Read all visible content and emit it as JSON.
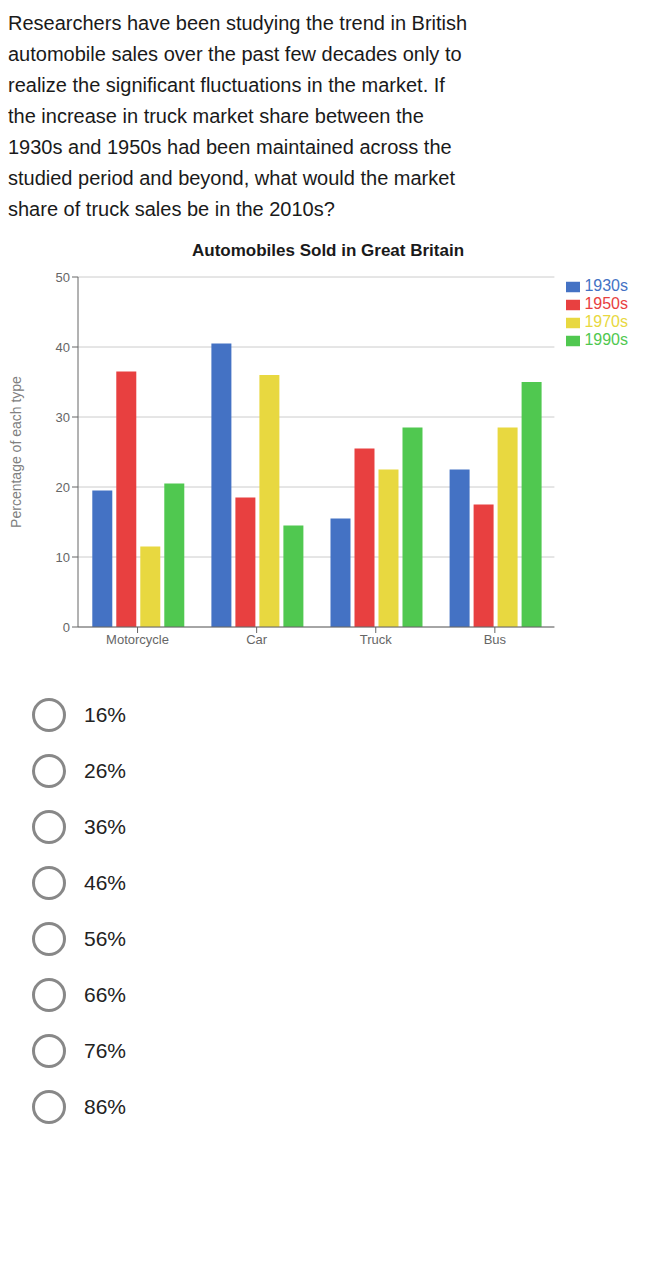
{
  "chart_data": {
    "type": "bar",
    "title": "Automobiles Sold in Great Britain",
    "ylabel": "Percentage of each type",
    "categories": [
      "Motorcycle",
      "Car",
      "Truck",
      "Bus"
    ],
    "series": [
      {
        "name": "1930s",
        "color": "#4472c4",
        "values": [
          19.5,
          40.5,
          15.5,
          22.5
        ]
      },
      {
        "name": "1950s",
        "color": "#e84040",
        "values": [
          36.5,
          18.5,
          25.5,
          17.5
        ]
      },
      {
        "name": "1970s",
        "color": "#e8d840",
        "values": [
          11.5,
          36.0,
          22.5,
          28.5
        ]
      },
      {
        "name": "1990s",
        "color": "#50c850",
        "values": [
          20.5,
          14.5,
          28.5,
          35.0
        ]
      }
    ],
    "ylim": [
      0,
      50
    ],
    "yticks": [
      0,
      10,
      20,
      30,
      40,
      50
    ],
    "grid": true,
    "legend": "right",
    "question": "Researchers have been studying the trend in British\nautomobile sales over the past few decades only to\nrealize the significant fluctuations in the market. If\nthe increase in truck market share between the\n1930s and 1950s had been maintained across the\nstudied period and beyond, what would the market\nshare of truck sales be in the 2010s?",
    "choices": [
      "16%",
      "26%",
      "36%",
      "46%",
      "56%",
      "66%",
      "76%",
      "86%"
    ]
  }
}
